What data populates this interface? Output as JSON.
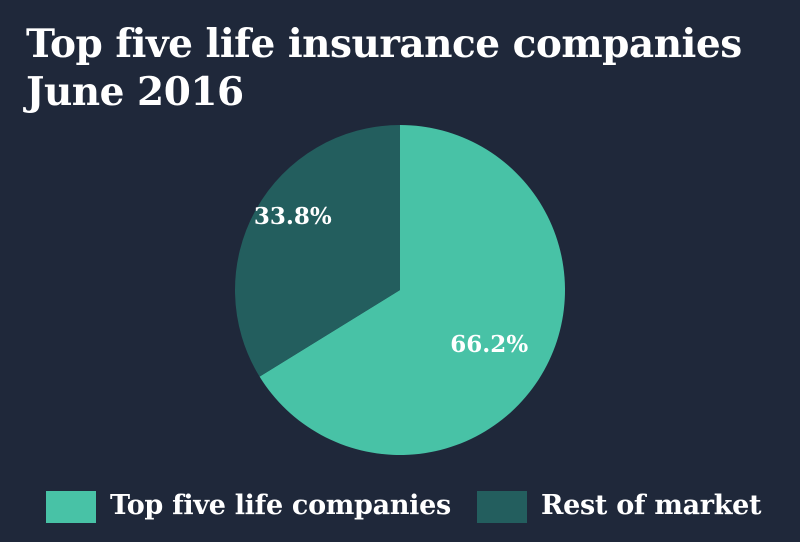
{
  "chart_data": {
    "type": "pie",
    "title": "Top five life insurance companies",
    "subtitle": "June 2016",
    "series": [
      {
        "name": "Top five life companies",
        "value": 66.2,
        "label": "66.2%",
        "color": "#48c2a6"
      },
      {
        "name": "Rest of market",
        "value": 33.8,
        "label": "33.8%",
        "color": "#235e5e"
      }
    ],
    "start": "12 o'clock",
    "direction": "clockwise",
    "legend_position": "bottom"
  },
  "colors": {
    "background": "#1f283a",
    "text": "#ffffff"
  }
}
